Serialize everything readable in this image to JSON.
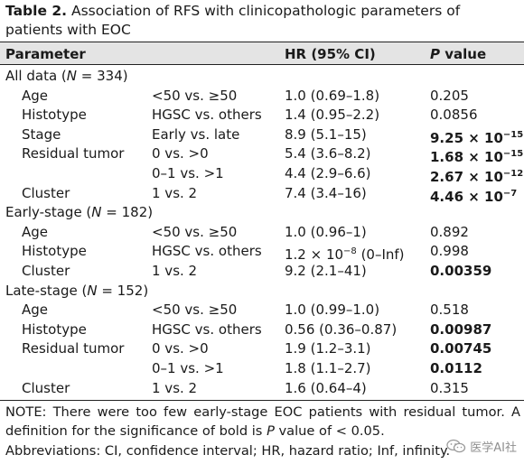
{
  "caption": {
    "label": "Table 2.",
    "text": "Association of RFS with clinicopathologic parameters of patients with EOC"
  },
  "headers": {
    "parameter": "Parameter",
    "hr": "HR (95% CI)",
    "p_italic": "P",
    "p_rest": " value"
  },
  "rows": [
    {
      "type": "section",
      "pre": "All data (",
      "n_var": "N",
      "post": " = 334)"
    },
    {
      "type": "data",
      "param": "Age",
      "comparison": "<50 vs. ≥50",
      "hr": "1.0 (0.69–1.8)",
      "p": "0.205",
      "bold": false
    },
    {
      "type": "data",
      "param": "Histotype",
      "comparison": "HGSC vs. others",
      "hr": "1.4 (0.95–2.2)",
      "p": "0.0856",
      "bold": false
    },
    {
      "type": "data",
      "param": "Stage",
      "comparison": "Early vs. late",
      "hr": "8.9 (5.1–15)",
      "p_mant": "9.25 × 10",
      "p_exp": "−15",
      "bold": true
    },
    {
      "type": "data",
      "param": "Residual tumor",
      "comparison": "0 vs. >0",
      "hr": "5.4 (3.6–8.2)",
      "p_mant": "1.68 × 10",
      "p_exp": "−15",
      "bold": true
    },
    {
      "type": "data",
      "param": "",
      "comparison": "0–1 vs. >1",
      "hr": "4.4 (2.9–6.6)",
      "p_mant": "2.67 × 10",
      "p_exp": "−12",
      "bold": true
    },
    {
      "type": "data",
      "param": "Cluster",
      "comparison": "1 vs. 2",
      "hr": "7.4 (3.4–16)",
      "p_mant": "4.46 × 10",
      "p_exp": "−7",
      "bold": true
    },
    {
      "type": "section",
      "pre": "Early-stage (",
      "n_var": "N",
      "post": " = 182)"
    },
    {
      "type": "data",
      "param": "Age",
      "comparison": "<50 vs. ≥50",
      "hr": "1.0 (0.96–1)",
      "p": "0.892",
      "bold": false
    },
    {
      "type": "data",
      "param": "Histotype",
      "comparison": "HGSC vs. others",
      "hr_mant": "1.2 × 10",
      "hr_exp": "−8",
      "hr_rest": " (0–Inf)",
      "p": "0.998",
      "bold": false
    },
    {
      "type": "data",
      "param": "Cluster",
      "comparison": "1 vs. 2",
      "hr": "9.2 (2.1–41)",
      "p": "0.00359",
      "bold": true
    },
    {
      "type": "section",
      "pre": "Late-stage (",
      "n_var": "N",
      "post": " = 152)"
    },
    {
      "type": "data",
      "param": "Age",
      "comparison": "<50 vs. ≥50",
      "hr": "1.0 (0.99–1.0)",
      "p": "0.518",
      "bold": false
    },
    {
      "type": "data",
      "param": "Histotype",
      "comparison": "HGSC vs. others",
      "hr": "0.56 (0.36–0.87)",
      "p": "0.00987",
      "bold": true
    },
    {
      "type": "data",
      "param": "Residual tumor",
      "comparison": "0 vs. >0",
      "hr": "1.9 (1.2–3.1)",
      "p": "0.00745",
      "bold": true
    },
    {
      "type": "data",
      "param": "",
      "comparison": "0–1 vs. >1",
      "hr": "1.8 (1.1–2.7)",
      "p": "0.0112",
      "bold": true
    },
    {
      "type": "data",
      "param": "Cluster",
      "comparison": "1 vs. 2",
      "hr": "1.6 (0.64–4)",
      "p": "0.315",
      "bold": false
    }
  ],
  "note": {
    "text1": "NOTE: There were too few early-stage EOC patients with residual tumor. A definition for the significance of bold is ",
    "p_italic": "P",
    "text2": " value of < 0.05."
  },
  "abbreviations": "Abbreviations: CI, confidence interval; HR, hazard ratio; Inf, infinity.",
  "watermark": {
    "text": "医学AI社",
    "icon": "wechat-logo-icon"
  }
}
